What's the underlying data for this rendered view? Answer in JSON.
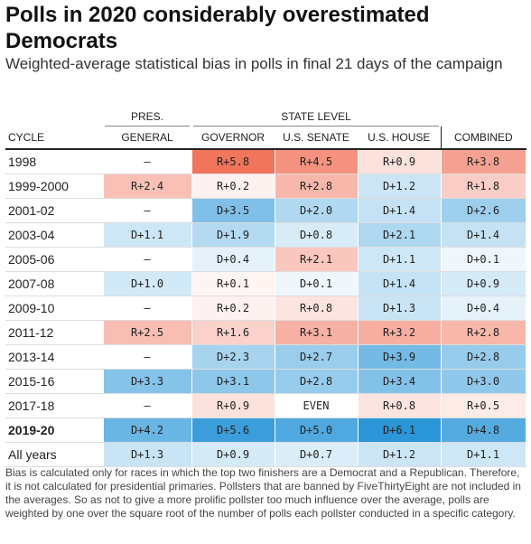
{
  "title": "Polls in 2020 considerably overestimated Democrats",
  "subtitle": "Weighted-average statistical bias in polls in final 21 days of the campaign",
  "groups": {
    "pres": "PRES.",
    "state": "STATE LEVEL"
  },
  "columns": [
    "CYCLE",
    "GENERAL",
    "GOVERNOR",
    "U.S. SENATE",
    "U.S. HOUSE",
    "COMBINED"
  ],
  "footnote": "Bias is calculated only for races in which the top two finishers are a Democrat and a Republican. Therefore, it is not calculated for presidential primaries. Pollsters that are banned by FiveThirtyEight are not included in the averages. So as not to give a more prolific pollster too much influence over the average, polls are weighted by one over the square root of the number of polls each pollster conducted in a specific category.",
  "colors": {
    "rep": "#f06d55",
    "dem": "#2b96d8",
    "neutral": "#ffffff"
  },
  "chart_data": {
    "type": "table",
    "title": "Polls in 2020 considerably overestimated Democrats",
    "subtitle": "Weighted-average statistical bias in polls in final 21 days of the campaign",
    "column_groups": [
      {
        "label": "PRES.",
        "columns": [
          "GENERAL"
        ]
      },
      {
        "label": "STATE LEVEL",
        "columns": [
          "GOVERNOR",
          "U.S. SENATE",
          "U.S. HOUSE"
        ]
      }
    ],
    "columns": [
      "GENERAL",
      "GOVERNOR",
      "U.S. SENATE",
      "U.S. HOUSE",
      "COMBINED"
    ],
    "rows": [
      {
        "cycle": "1998",
        "values": [
          "–",
          "R+5.8",
          "R+4.5",
          "R+0.9",
          "R+3.8"
        ]
      },
      {
        "cycle": "1999-2000",
        "values": [
          "R+2.4",
          "R+0.2",
          "R+2.8",
          "D+1.2",
          "R+1.8"
        ]
      },
      {
        "cycle": "2001-02",
        "values": [
          "–",
          "D+3.5",
          "D+2.0",
          "D+1.4",
          "D+2.6"
        ]
      },
      {
        "cycle": "2003-04",
        "values": [
          "D+1.1",
          "D+1.9",
          "D+0.8",
          "D+2.1",
          "D+1.4"
        ]
      },
      {
        "cycle": "2005-06",
        "values": [
          "–",
          "D+0.4",
          "R+2.1",
          "D+1.1",
          "D+0.1"
        ]
      },
      {
        "cycle": "2007-08",
        "values": [
          "D+1.0",
          "R+0.1",
          "D+0.1",
          "D+1.4",
          "D+0.9"
        ]
      },
      {
        "cycle": "2009-10",
        "values": [
          "–",
          "R+0.2",
          "R+0.8",
          "D+1.3",
          "D+0.4"
        ]
      },
      {
        "cycle": "2011-12",
        "values": [
          "R+2.5",
          "R+1.6",
          "R+3.1",
          "R+3.2",
          "R+2.8"
        ]
      },
      {
        "cycle": "2013-14",
        "values": [
          "–",
          "D+2.3",
          "D+2.7",
          "D+3.9",
          "D+2.8"
        ]
      },
      {
        "cycle": "2015-16",
        "values": [
          "D+3.3",
          "D+3.1",
          "D+2.8",
          "D+3.4",
          "D+3.0"
        ]
      },
      {
        "cycle": "2017-18",
        "values": [
          "–",
          "R+0.9",
          "EVEN",
          "R+0.8",
          "R+0.5"
        ]
      },
      {
        "cycle": "2019-20",
        "values": [
          "D+4.2",
          "D+5.6",
          "D+5.0",
          "D+6.1",
          "D+4.8"
        ],
        "bold": true
      },
      {
        "cycle": "All years",
        "values": [
          "D+1.3",
          "D+0.9",
          "D+0.7",
          "D+1.2",
          "D+1.1"
        ]
      }
    ]
  }
}
